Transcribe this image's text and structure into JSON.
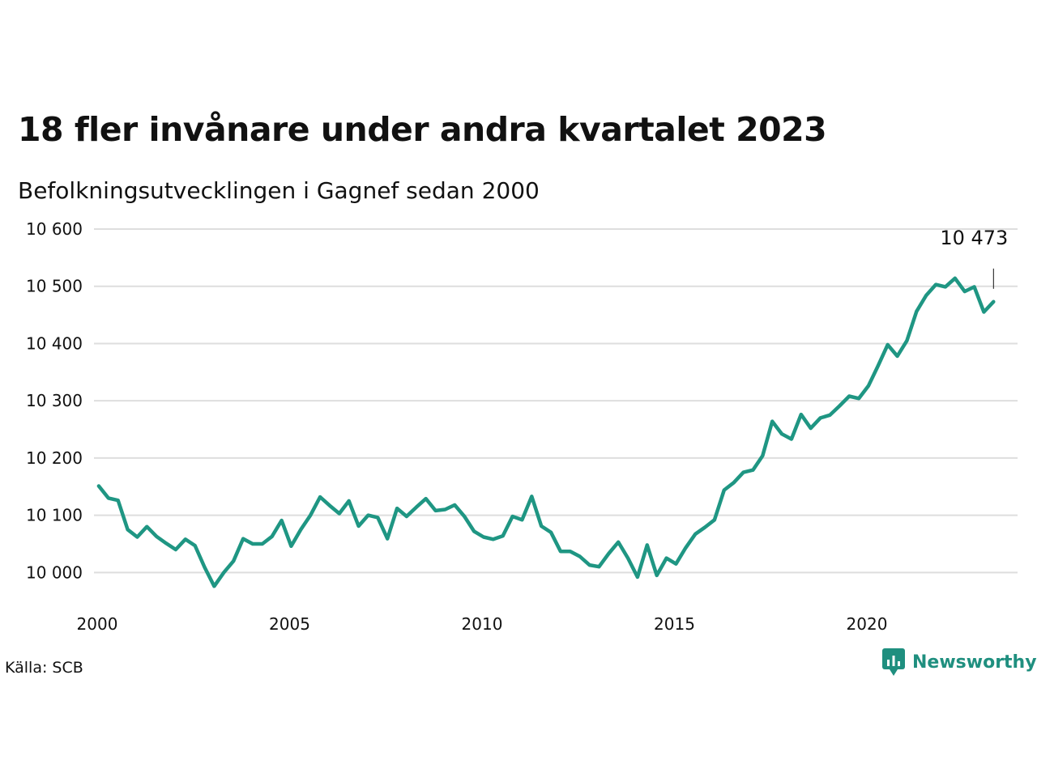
{
  "title": "18 fler invånare under andra kvartalet 2023",
  "subtitle": "Befolkningsutvecklingen i Gagnef sedan 2000",
  "source": "Källa: SCB",
  "brand": {
    "name": "Newsworthy",
    "icon": "newsworthy-logo-icon",
    "color": "#1f8f7f"
  },
  "chart_data": {
    "type": "line",
    "title": "18 fler invånare under andra kvartalet 2023",
    "subtitle": "Befolkningsutvecklingen i Gagnef sedan 2000",
    "xlabel": "",
    "ylabel": "",
    "x_tick_labels": [
      "2000",
      "2005",
      "2010",
      "2015",
      "2020"
    ],
    "x_ticks": [
      2000,
      2005,
      2010,
      2015,
      2020
    ],
    "y_tick_labels": [
      "10 000",
      "10 100",
      "10 200",
      "10 300",
      "10 400",
      "10 500",
      "10 600"
    ],
    "y_ticks": [
      10000,
      10100,
      10200,
      10300,
      10400,
      10500,
      10600
    ],
    "ylim": [
      9975,
      10600
    ],
    "xlim": [
      2000,
      2024.0
    ],
    "grid": "horizontal",
    "line_color": "#1f9683",
    "end_label": "10 473",
    "series": [
      {
        "x": [
          2000.125,
          2000.375,
          2000.625,
          2000.875,
          2001.125,
          2001.375,
          2001.625,
          2001.875,
          2002.125,
          2002.375,
          2002.625,
          2002.875,
          2003.125,
          2003.375,
          2003.625,
          2003.875,
          2004.125,
          2004.375,
          2004.625,
          2004.875,
          2005.125,
          2005.375,
          2005.625,
          2005.875,
          2006.125,
          2006.375,
          2006.625,
          2006.875,
          2007.125,
          2007.375,
          2007.625,
          2007.875,
          2008.125,
          2008.375,
          2008.625,
          2008.875,
          2009.125,
          2009.375,
          2009.625,
          2009.875,
          2010.125,
          2010.375,
          2010.625,
          2010.875,
          2011.125,
          2011.375,
          2011.625,
          2011.875,
          2012.125,
          2012.375,
          2012.625,
          2012.875,
          2013.125,
          2013.375,
          2013.625,
          2013.875,
          2014.125,
          2014.375,
          2014.625,
          2014.875,
          2015.125,
          2015.375,
          2015.625,
          2015.875,
          2016.125,
          2016.375,
          2016.625,
          2016.875,
          2017.125,
          2017.375,
          2017.625,
          2017.875,
          2018.125,
          2018.375,
          2018.625,
          2018.875,
          2019.125,
          2019.375,
          2019.625,
          2019.875,
          2020.125,
          2020.375,
          2020.625,
          2020.875,
          2021.125,
          2021.375,
          2021.625,
          2021.875,
          2022.125,
          2022.375,
          2022.625,
          2022.875,
          2023.125,
          2023.375
        ],
        "values": [
          10151,
          10130,
          10126,
          10075,
          10062,
          10080,
          10063,
          10051,
          10040,
          10058,
          10047,
          10009,
          9976,
          10000,
          10020,
          10059,
          10050,
          10050,
          10063,
          10091,
          10046,
          10075,
          10100,
          10132,
          10117,
          10103,
          10125,
          10081,
          10100,
          10096,
          10059,
          10112,
          10098,
          10114,
          10129,
          10108,
          10110,
          10118,
          10098,
          10072,
          10062,
          10058,
          10064,
          10098,
          10092,
          10133,
          10081,
          10070,
          10037,
          10037,
          10028,
          10013,
          10010,
          10033,
          10053,
          10025,
          9992,
          10048,
          9995,
          10025,
          10015,
          10043,
          10067,
          10079,
          10092,
          10144,
          10157,
          10175,
          10179,
          10204,
          10264,
          10242,
          10233,
          10276,
          10252,
          10270,
          10275,
          10291,
          10308,
          10304,
          10326,
          10361,
          10398,
          10378,
          10405,
          10456,
          10484,
          10503,
          10499,
          10514,
          10491,
          10499,
          10455,
          10473
        ]
      }
    ]
  }
}
